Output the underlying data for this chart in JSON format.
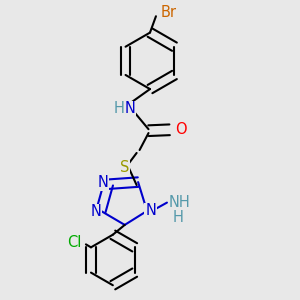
{
  "bg_color": "#e8e8e8",
  "bond_color": "#000000",
  "bond_width": 1.5,
  "atom_colors": {
    "Br": "#cc6600",
    "N": "#0000cc",
    "O": "#ff0000",
    "S": "#999900",
    "Cl": "#00aa00",
    "NH": "#5599aa",
    "H": "#5599aa"
  }
}
